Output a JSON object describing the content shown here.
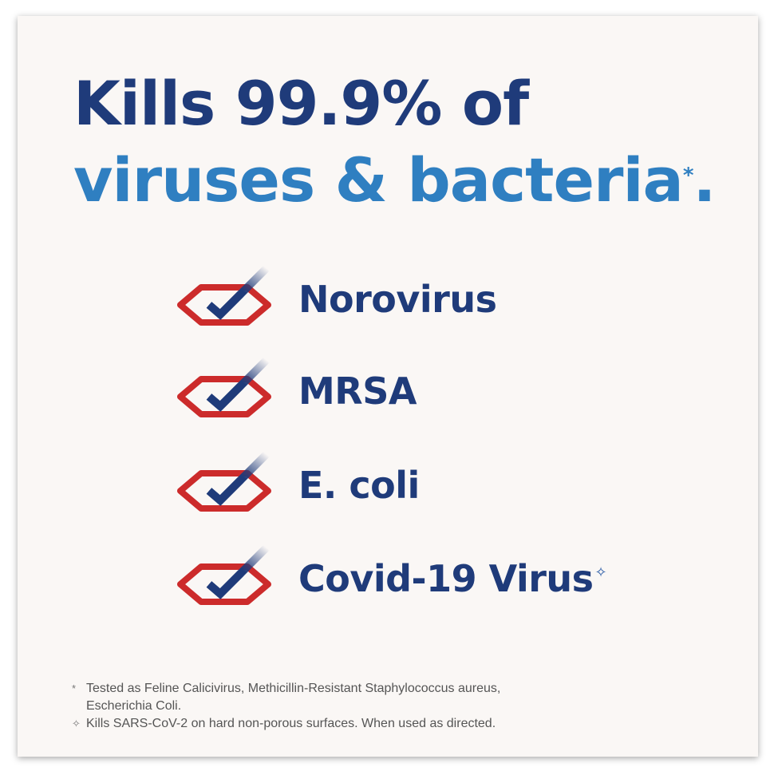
{
  "headline": {
    "line1": "Kills 99.9% of",
    "line2": "viruses & bacteria",
    "asterisk": "*",
    "period": "."
  },
  "colors": {
    "navy": "#1f3b7a",
    "blue": "#2f7fc1",
    "red": "#cc2b2b",
    "background": "#faf7f5"
  },
  "icon": "check-badge-icon",
  "items": [
    {
      "label": "Norovirus"
    },
    {
      "label": "MRSA"
    },
    {
      "label": "E. coli"
    },
    {
      "label": "Covid-19 Virus",
      "mark": "✧"
    }
  ],
  "footnotes": [
    {
      "mark": "*",
      "text": "Tested as Feline Calicivirus, Methicillin-Resistant Staphylococcus aureus, Escherichia Coli."
    },
    {
      "mark": "✧",
      "text": "Kills SARS-CoV-2 on hard non-porous surfaces. When used as directed."
    }
  ]
}
